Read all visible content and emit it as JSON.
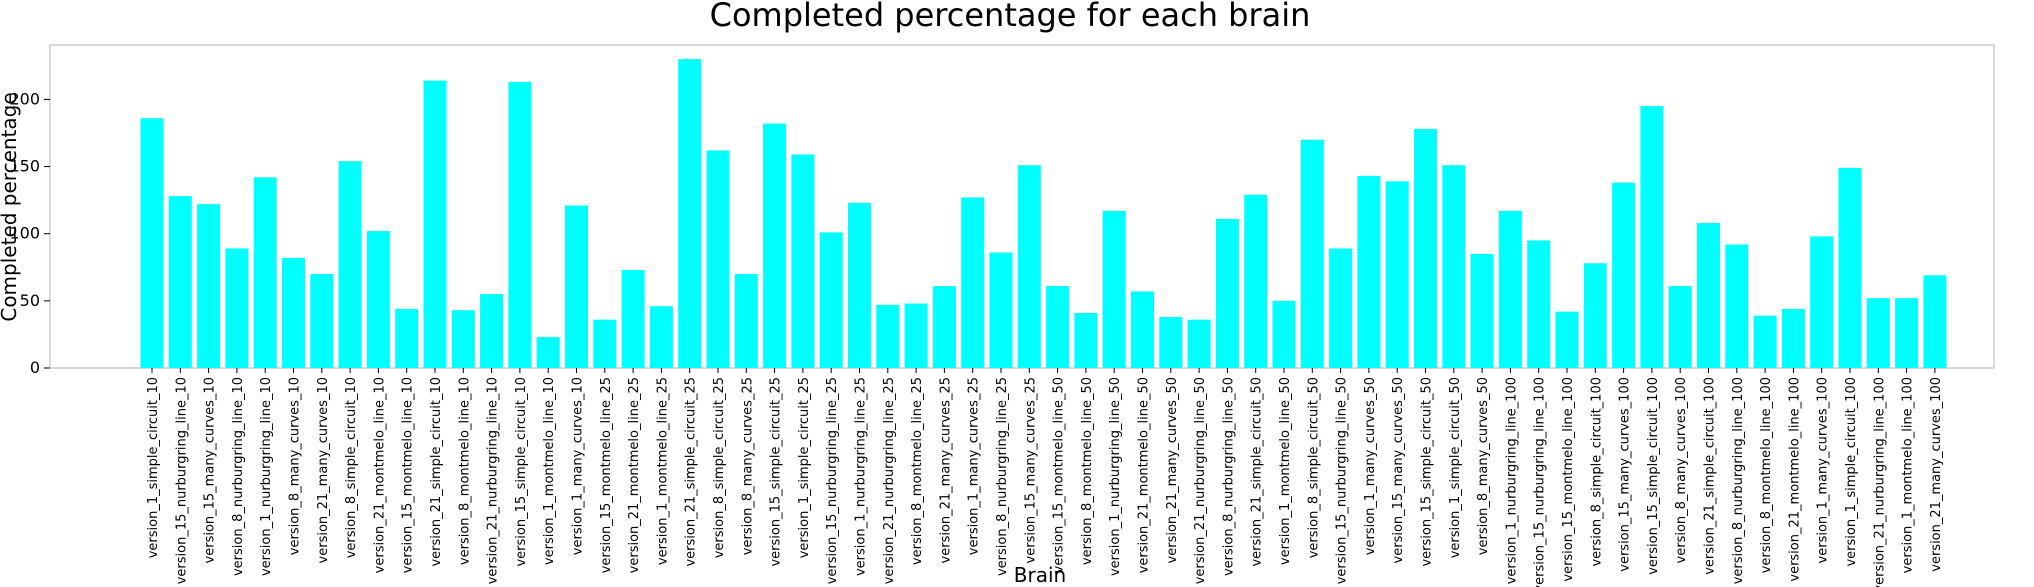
{
  "chart_data": {
    "type": "bar",
    "title": "Completed percentage for each brain",
    "xlabel": "Brain",
    "ylabel": "Completed percentage",
    "ylim": [
      0,
      240
    ],
    "yticks": [
      0,
      50,
      100,
      150,
      200
    ],
    "grid": false,
    "bar_color": "#00ffff",
    "categories": [
      "version_1_simple_circuit_10",
      "version_15_nurburgring_line_10",
      "version_15_many_curves_10",
      "version_8_nurburgring_line_10",
      "version_1_nurburgring_line_10",
      "version_8_many_curves_10",
      "version_21_many_curves_10",
      "version_8_simple_circuit_10",
      "version_21_montmelo_line_10",
      "version_15_montmelo_line_10",
      "version_21_simple_circuit_10",
      "version_8_montmelo_line_10",
      "version_21_nurburgring_line_10",
      "version_15_simple_circuit_10",
      "version_1_montmelo_line_10",
      "version_1_many_curves_10",
      "version_15_montmelo_line_25",
      "version_21_montmelo_line_25",
      "version_1_montmelo_line_25",
      "version_21_simple_circuit_25",
      "version_8_simple_circuit_25",
      "version_8_many_curves_25",
      "version_15_simple_circuit_25",
      "version_1_simple_circuit_25",
      "version_15_nurburgring_line_25",
      "version_1_nurburgring_line_25",
      "version_21_nurburgring_line_25",
      "version_8_montmelo_line_25",
      "version_21_many_curves_25",
      "version_1_many_curves_25",
      "version_8_nurburgring_line_25",
      "version_15_many_curves_25",
      "version_15_montmelo_line_50",
      "version_8_montmelo_line_50",
      "version_1_nurburgring_line_50",
      "version_21_montmelo_line_50",
      "version_21_many_curves_50",
      "version_21_nurburgring_line_50",
      "version_8_nurburgring_line_50",
      "version_21_simple_circuit_50",
      "version_1_montmelo_line_50",
      "version_8_simple_circuit_50",
      "version_15_nurburgring_line_50",
      "version_1_many_curves_50",
      "version_15_many_curves_50",
      "version_15_simple_circuit_50",
      "version_1_simple_circuit_50",
      "version_8_many_curves_50",
      "version_1_nurburgring_line_100",
      "version_15_nurburgring_line_100",
      "version_15_montmelo_line_100",
      "version_8_simple_circuit_100",
      "version_15_many_curves_100",
      "version_15_simple_circuit_100",
      "version_8_many_curves_100",
      "version_21_simple_circuit_100",
      "version_8_nurburgring_line_100",
      "version_8_montmelo_line_100",
      "version_21_montmelo_line_100",
      "version_1_many_curves_100",
      "version_1_simple_circuit_100",
      "version_21_nurburgring_line_100",
      "version_1_montmelo_line_100",
      "version_21_many_curves_100"
    ],
    "values": [
      186,
      128,
      122,
      89,
      142,
      82,
      70,
      154,
      102,
      44,
      214,
      43,
      55,
      213,
      23,
      121,
      36,
      73,
      46,
      230,
      162,
      70,
      182,
      159,
      101,
      123,
      47,
      48,
      61,
      127,
      86,
      151,
      61,
      41,
      117,
      57,
      38,
      36,
      111,
      129,
      50,
      170,
      89,
      143,
      139,
      178,
      151,
      85,
      117,
      95,
      42,
      78,
      138,
      195,
      61,
      108,
      92,
      39,
      44,
      98,
      149,
      52,
      52,
      69
    ]
  }
}
